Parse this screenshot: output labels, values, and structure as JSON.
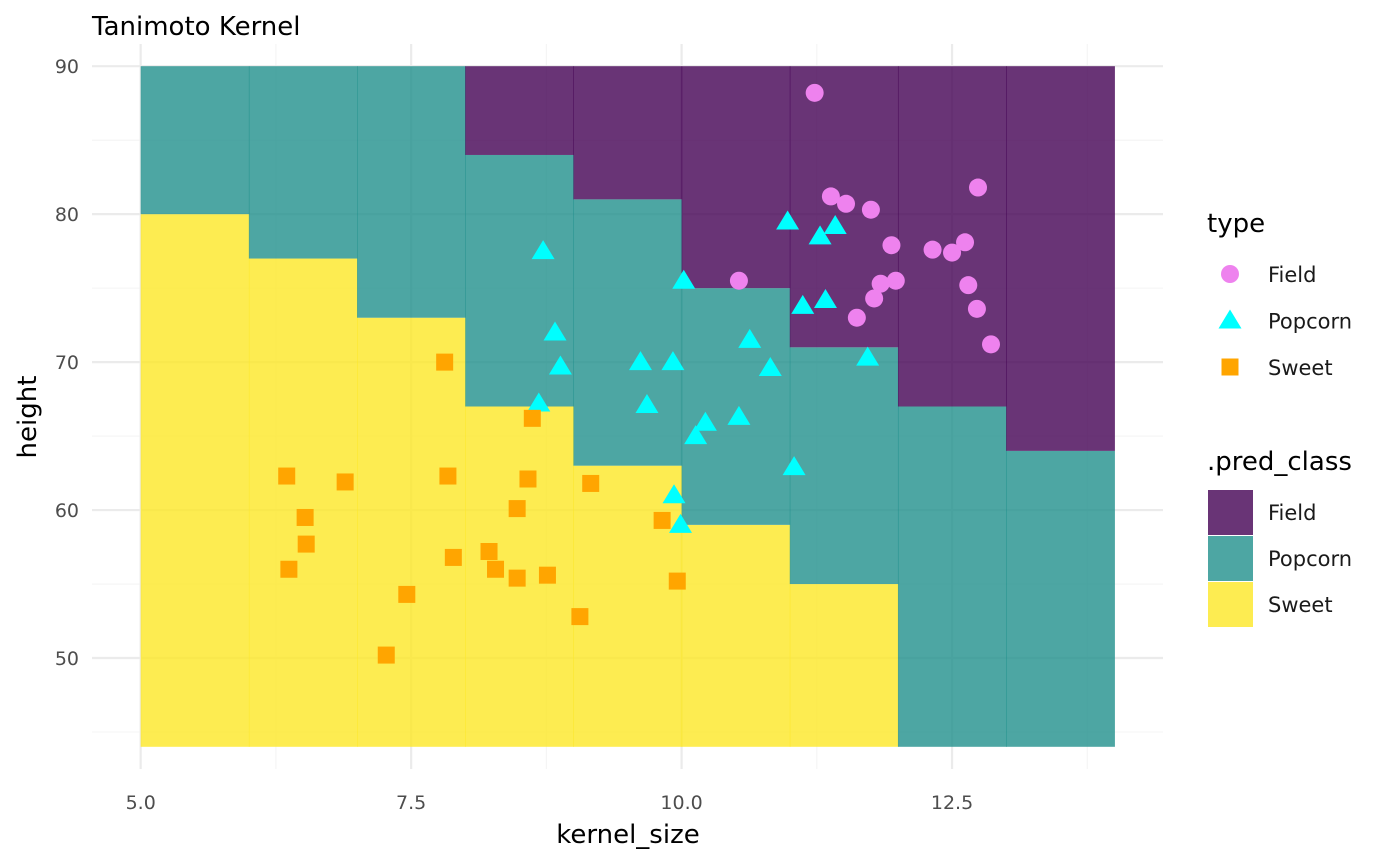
{
  "chart_data": {
    "type": "scatter",
    "title": "Tanimoto Kernel",
    "xlabel": "kernel_size",
    "ylabel": "height",
    "xlim": [
      4.55,
      14.45
    ],
    "ylim": [
      42.5,
      91.5
    ],
    "x_ticks": [
      5.0,
      7.5,
      10.0,
      12.5
    ],
    "x_tick_labels": [
      "5.0",
      "7.5",
      "10.0",
      "12.5"
    ],
    "y_ticks": [
      50,
      60,
      70,
      80,
      90
    ],
    "y_tick_labels": [
      "50",
      "60",
      "70",
      "80",
      "90"
    ],
    "grid": true,
    "legend_position": "right",
    "background_regions": {
      "legend_title": ".pred_class",
      "classes": [
        {
          "name": "Field",
          "color": "#440154"
        },
        {
          "name": "Popcorn",
          "color": "#21908C"
        },
        {
          "name": "Sweet",
          "color": "#FDE725"
        }
      ],
      "opacity": 0.8,
      "extent": {
        "x": [
          5,
          14
        ],
        "y": [
          44,
          90
        ]
      },
      "boundaries": [
        {
          "x_range": [
            5,
            6
          ],
          "sweet_below": 80,
          "field_above": 90
        },
        {
          "x_range": [
            6,
            7
          ],
          "sweet_below": 77,
          "field_above": 90
        },
        {
          "x_range": [
            7,
            8
          ],
          "sweet_below": 73,
          "field_above": 90
        },
        {
          "x_range": [
            8,
            9
          ],
          "sweet_below": 67,
          "field_above": 84
        },
        {
          "x_range": [
            9,
            10
          ],
          "sweet_below": 63,
          "field_above": 81
        },
        {
          "x_range": [
            10,
            11
          ],
          "sweet_below": 59,
          "field_above": 75
        },
        {
          "x_range": [
            11,
            12
          ],
          "sweet_below": 55,
          "field_above": 71
        },
        {
          "x_range": [
            12,
            13
          ],
          "sweet_below": 44,
          "field_above": 67
        },
        {
          "x_range": [
            13,
            14
          ],
          "sweet_below": 44,
          "field_above": 64
        }
      ]
    },
    "points_legend_title": "type",
    "series": [
      {
        "name": "Field",
        "color": "#EE82EE",
        "shape": "circle",
        "points": [
          [
            11.23,
            88.2
          ],
          [
            11.38,
            81.2
          ],
          [
            11.52,
            80.7
          ],
          [
            11.75,
            80.3
          ],
          [
            12.74,
            81.8
          ],
          [
            11.94,
            77.9
          ],
          [
            12.32,
            77.6
          ],
          [
            12.5,
            77.4
          ],
          [
            12.62,
            78.1
          ],
          [
            10.53,
            75.5
          ],
          [
            11.84,
            75.3
          ],
          [
            11.98,
            75.5
          ],
          [
            11.78,
            74.3
          ],
          [
            12.65,
            75.2
          ],
          [
            12.73,
            73.6
          ],
          [
            11.62,
            73.0
          ],
          [
            12.86,
            71.2
          ]
        ]
      },
      {
        "name": "Popcorn",
        "color": "#00FFFF",
        "shape": "triangle",
        "points": [
          [
            8.72,
            77.5
          ],
          [
            10.02,
            75.5
          ],
          [
            10.98,
            79.5
          ],
          [
            11.28,
            78.5
          ],
          [
            11.42,
            79.2
          ],
          [
            11.12,
            73.8
          ],
          [
            11.33,
            74.2
          ],
          [
            8.83,
            72.0
          ],
          [
            8.88,
            69.7
          ],
          [
            10.63,
            71.5
          ],
          [
            9.62,
            70.0
          ],
          [
            9.92,
            70.0
          ],
          [
            10.82,
            69.6
          ],
          [
            11.72,
            70.3
          ],
          [
            8.68,
            67.2
          ],
          [
            9.68,
            67.1
          ],
          [
            10.53,
            66.3
          ],
          [
            10.22,
            65.9
          ],
          [
            10.13,
            65.0
          ],
          [
            11.04,
            62.9
          ],
          [
            9.93,
            61.0
          ],
          [
            9.99,
            59.0
          ]
        ]
      },
      {
        "name": "Sweet",
        "color": "#FFA500",
        "shape": "square",
        "points": [
          [
            7.81,
            70.0
          ],
          [
            8.62,
            66.2
          ],
          [
            6.35,
            62.3
          ],
          [
            6.89,
            61.9
          ],
          [
            7.84,
            62.3
          ],
          [
            8.58,
            62.1
          ],
          [
            9.16,
            61.8
          ],
          [
            6.52,
            59.5
          ],
          [
            8.48,
            60.1
          ],
          [
            9.82,
            59.3
          ],
          [
            6.53,
            57.7
          ],
          [
            7.89,
            56.8
          ],
          [
            8.22,
            57.2
          ],
          [
            6.37,
            56.0
          ],
          [
            8.28,
            56.0
          ],
          [
            8.48,
            55.4
          ],
          [
            8.76,
            55.6
          ],
          [
            9.96,
            55.2
          ],
          [
            7.46,
            54.3
          ],
          [
            9.06,
            52.8
          ],
          [
            7.27,
            50.2
          ]
        ]
      }
    ]
  }
}
